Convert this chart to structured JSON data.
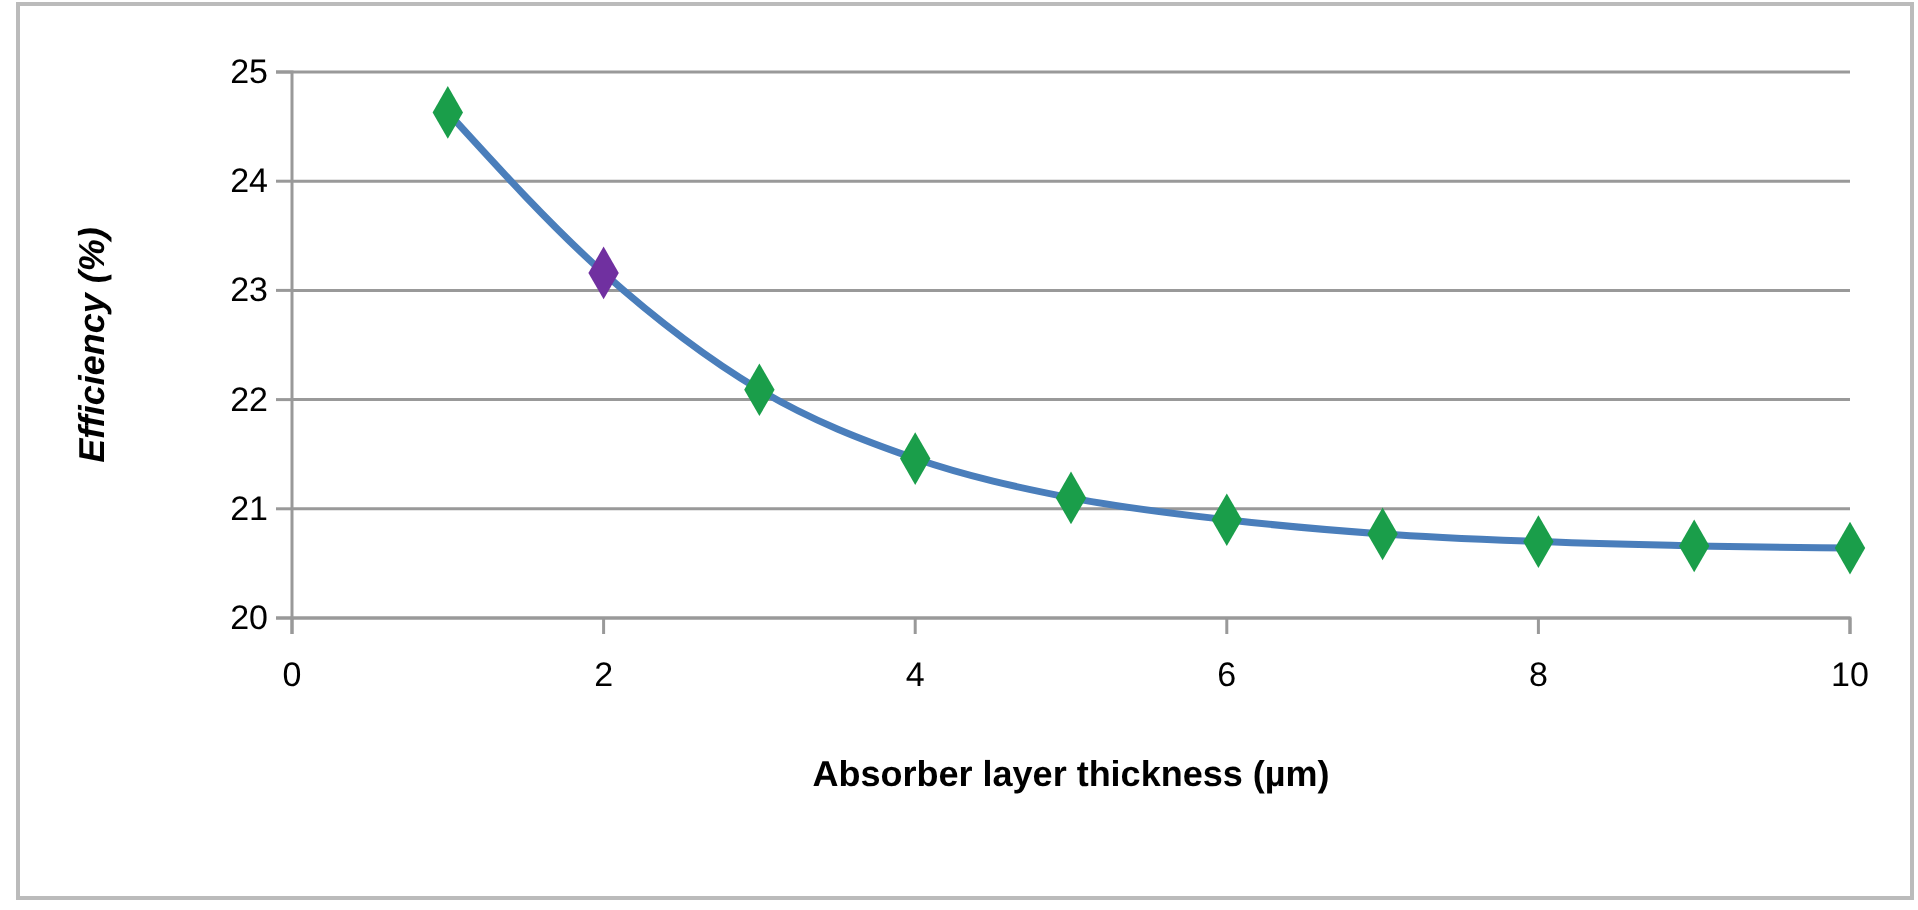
{
  "chart_data": {
    "type": "line",
    "xlabel": "Absorber layer thickness (µm)",
    "ylabel": "Efficiency (%)",
    "x": [
      1,
      2,
      3,
      4,
      5,
      6,
      7,
      8,
      9,
      10
    ],
    "series": [
      {
        "color": "#4a7ebb",
        "colors": [
          "#1a9e4a",
          "#7030a0",
          "#1a9e4a",
          "#1a9e4a",
          "#1a9e4a",
          "#1a9e4a",
          "#1a9e4a",
          "#1a9e4a",
          "#1a9e4a",
          "#1a9e4a"
        ],
        "values": [
          24.63,
          23.16,
          22.09,
          21.46,
          21.1,
          20.9,
          20.77,
          20.7,
          20.66,
          20.64
        ]
      }
    ],
    "xlim": [
      0,
      10
    ],
    "xticks": [
      0,
      2,
      4,
      6,
      8,
      10
    ],
    "ylim": [
      20,
      25
    ],
    "yticks": [
      20,
      21,
      22,
      23,
      24,
      25
    ],
    "grid": "y",
    "marker": "diamond",
    "line_style": "solid"
  }
}
